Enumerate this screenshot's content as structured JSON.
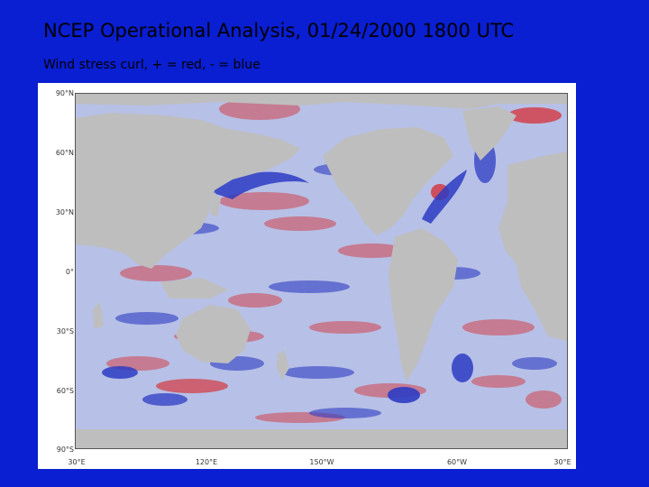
{
  "title": "NCEP Operational Analysis, 01/24/2000 1800 UTC",
  "subtitle": "Wind stress curl, + = red, - = blue",
  "map": {
    "projection": "equirectangular",
    "lon_range": [
      "30°E",
      "30°E"
    ],
    "lat_range": [
      "90°S",
      "90°N"
    ],
    "lat_labels": [
      "90°N",
      "60°N",
      "30°N",
      "0°",
      "30°S",
      "60°S",
      "90°S"
    ],
    "lon_labels": [
      "30°E",
      "120°E",
      "150°W",
      "60°W",
      "30°E"
    ],
    "colors": {
      "positive": "#d2414b",
      "negative": "#2d3cc3",
      "neutral_ocean": "#b7c0e6",
      "land": "#bebebe",
      "background": "#0a1ed2"
    }
  }
}
